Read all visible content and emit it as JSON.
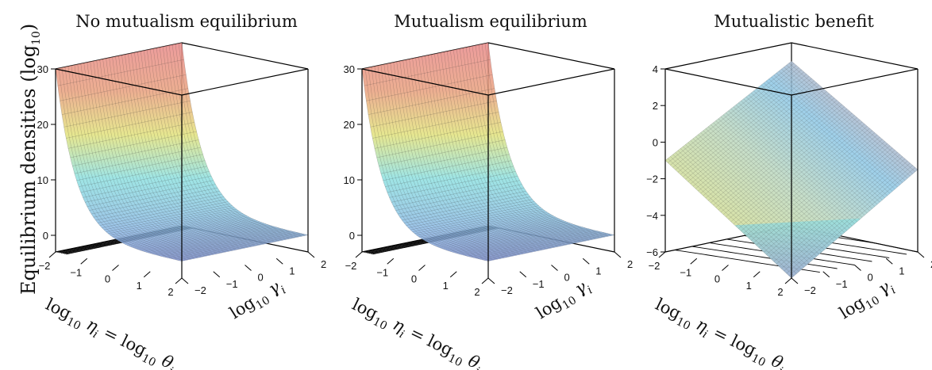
{
  "figure": {
    "ylabel": {
      "main": "Equilibrium densities (log",
      "sub": "10",
      "close": ")"
    },
    "xlabel": {
      "log1": "log",
      "sub1": "10",
      "sym1": "η",
      "isub1": "i",
      "eq": " = log",
      "sub2": "10",
      "sym2": "θ",
      "isub2": "i"
    },
    "glabel": {
      "log": "log",
      "sub": "10",
      "sym": "γ",
      "isub": "i"
    }
  },
  "chart_data": [
    {
      "type": "surface",
      "title": "No mutualism equilibrium",
      "x_axis": {
        "ticks": [
          "−2",
          "−1",
          "0",
          "1",
          "2"
        ],
        "range": [
          -2,
          2
        ]
      },
      "gamma_axis": {
        "ticks": [
          "−2",
          "−1",
          "0",
          "1",
          "2"
        ],
        "range": [
          -2,
          2
        ]
      },
      "z_axis": {
        "ticks": [
          "0",
          "10",
          "20",
          "30"
        ],
        "range": [
          -3,
          30
        ]
      },
      "surface_description": "z ≈ 0 at high log10 eta/theta, rising steeply to ≈30 at log10 eta = −2; nearly constant along gamma",
      "samples": [
        {
          "x": -2,
          "z": 30
        },
        {
          "x": -1.5,
          "z": 13
        },
        {
          "x": -1,
          "z": 6
        },
        {
          "x": 0,
          "z": 1.5
        },
        {
          "x": 1,
          "z": 0.3
        },
        {
          "x": 2,
          "z": 0
        }
      ]
    },
    {
      "type": "surface",
      "title": "Mutualism equilibrium",
      "x_axis": {
        "ticks": [
          "−2",
          "−1",
          "0",
          "1",
          "2"
        ],
        "range": [
          -2,
          2
        ]
      },
      "gamma_axis": {
        "ticks": [
          "−2",
          "−1",
          "0",
          "1",
          "2"
        ],
        "range": [
          -2,
          2
        ]
      },
      "z_axis": {
        "ticks": [
          "0",
          "10",
          "20",
          "30"
        ],
        "range": [
          -3,
          30
        ]
      },
      "surface_description": "same shape as no-mutualism surface: ≈30 at log10 eta = −2 decaying to ≈0",
      "samples": [
        {
          "x": -2,
          "z": 30
        },
        {
          "x": -1.5,
          "z": 13
        },
        {
          "x": -1,
          "z": 6
        },
        {
          "x": 0,
          "z": 1.5
        },
        {
          "x": 1,
          "z": 0.3
        },
        {
          "x": 2,
          "z": 0
        }
      ]
    },
    {
      "type": "surface",
      "title": "Mutualistic benefit",
      "x_axis": {
        "ticks": [
          "−2",
          "−1",
          "0",
          "1",
          "2"
        ],
        "range": [
          -2,
          2
        ]
      },
      "gamma_axis": {
        "ticks": [
          "−2",
          "−1",
          "0",
          "1",
          "2"
        ],
        "range": [
          -2,
          2
        ]
      },
      "z_axis": {
        "ticks": [
          "−6",
          "−4",
          "−2",
          "0",
          "2",
          "4"
        ],
        "range": [
          -6,
          4
        ]
      },
      "surface_description": "tilted plane: high (≈3) at low eta and high gamma, low (≈−6) at high eta and low gamma",
      "corners": [
        {
          "x": -2,
          "gamma": -2,
          "z": -1
        },
        {
          "x": -2,
          "gamma": 2,
          "z": 3
        },
        {
          "x": 2,
          "gamma": 2,
          "z": -1.5
        },
        {
          "x": 2,
          "gamma": -2,
          "z": -6
        }
      ]
    }
  ],
  "colors": {
    "red": "#e98a8a",
    "yellow": "#e2e27c",
    "cyan": "#8ee0e0",
    "blue": "#8aa0e6",
    "mesh": "#333333"
  }
}
